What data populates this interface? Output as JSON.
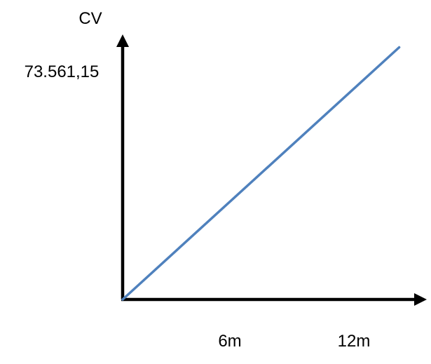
{
  "chart_data": {
    "type": "line",
    "ylabel": "CV",
    "xlabel": "",
    "y_tick_labels": [
      "73.561,15"
    ],
    "x_tick_labels": [
      "6m",
      "12m"
    ],
    "x_ticks": [
      6,
      12
    ],
    "y_ticks": [
      73561.15
    ],
    "xlim": [
      0,
      14
    ],
    "ylim": [
      0,
      75500
    ],
    "series": [
      {
        "x": [
          0,
          13
        ],
        "y": [
          0,
          73561.15
        ]
      }
    ],
    "grid": false,
    "legend": "none"
  },
  "colors": {
    "line": "#4f81bd",
    "axis": "#000000"
  }
}
